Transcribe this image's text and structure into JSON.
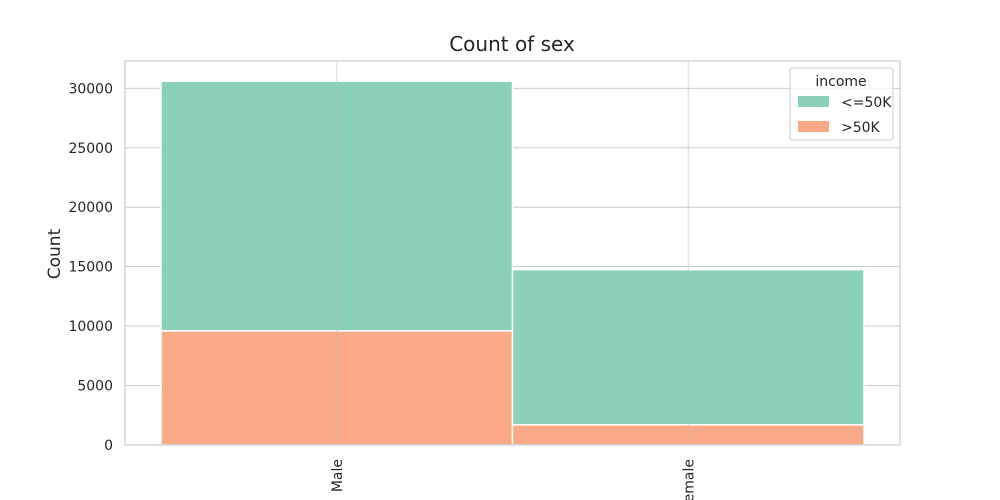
{
  "chart_data": {
    "type": "bar",
    "stacked": true,
    "title": "Count of sex",
    "xlabel": "",
    "ylabel": "Count",
    "categories": [
      "Male",
      "Female"
    ],
    "category_tick_labels": [
      "Male",
      "emale"
    ],
    "series": [
      {
        "name": "<=50K",
        "values": [
          21000,
          13050
        ],
        "color": "#8bd0b8"
      },
      {
        "name": ">50K",
        "values": [
          9600,
          1700
        ],
        "color": "#f9a988"
      }
    ],
    "stack_order": [
      ">50K",
      "<=50K"
    ],
    "ylim": [
      0,
      32300
    ],
    "yticks": [
      0,
      5000,
      10000,
      15000,
      20000,
      25000,
      30000
    ],
    "grid": true,
    "legend": {
      "title": "income",
      "position": "top-right",
      "entries": [
        "<=50K",
        ">50K"
      ]
    }
  }
}
